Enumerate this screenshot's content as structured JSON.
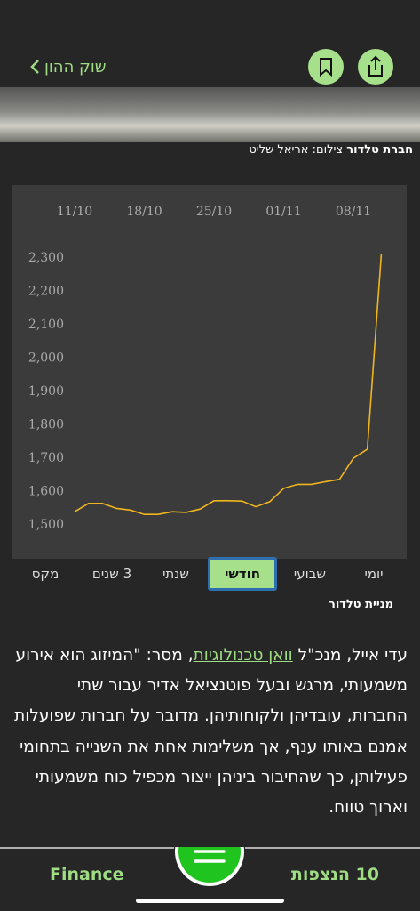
{
  "header": {
    "back_label": "שוק ההון"
  },
  "photo_caption": {
    "credit_bold": "חברת טלדור",
    "credit": "צילום: אריאל שליט"
  },
  "chart_data": {
    "type": "line",
    "categories": [
      "11/10",
      null,
      null,
      null,
      null,
      "18/10",
      null,
      null,
      null,
      null,
      "25/10",
      null,
      null,
      null,
      null,
      "01/11",
      null,
      null,
      null,
      null,
      "08/11",
      null,
      null
    ],
    "values": [
      1540,
      1565,
      1565,
      1550,
      1545,
      1532,
      1532,
      1540,
      1538,
      1548,
      1573,
      1573,
      1572,
      1555,
      1570,
      1610,
      1622,
      1622,
      1630,
      1637,
      1700,
      1727,
      2310
    ],
    "color": "#f0b51e",
    "ylim": [
      1450,
      2350
    ],
    "yticks": [
      {
        "value": 1500,
        "label": "1,500"
      },
      {
        "value": 1600,
        "label": "1,600"
      },
      {
        "value": 1700,
        "label": "1,700"
      },
      {
        "value": 1800,
        "label": "1,800"
      },
      {
        "value": 1900,
        "label": "1,900"
      },
      {
        "value": 2000,
        "label": "2,000"
      },
      {
        "value": 2100,
        "label": "2,100"
      },
      {
        "value": 2200,
        "label": "2,200"
      },
      {
        "value": 2300,
        "label": "2,300"
      }
    ],
    "grid": false
  },
  "tabs": {
    "items": [
      "יומי",
      "שבועי",
      "חודשי",
      "שנתי",
      "3 שנים",
      "מקס"
    ],
    "selected": 2
  },
  "chart_caption": "מניית טלדור",
  "article": {
    "line0": {
      "before": "עדי אייל, מנכ\"ל ",
      "link": "וואן טכנולוגיות",
      "after": ", מסר: \"המיזוג הוא אירוע"
    },
    "lines": [
      "משמעותי, מרגש ובעל פוטנציאל אדיר עבור שתי",
      "החברות, עובדיהן ולקוחותיהן. מדובר על חברות שפועלות",
      "אמנם באותו ענף, אך משלימות אחת את השנייה בתחומי",
      "פעילותן, כך שהחיבור ביניהן ייצור מכפיל כוח משמעותי",
      "וארוך טווח."
    ]
  },
  "bottom_bar": {
    "left": "Finance",
    "right": "10 הנצפות"
  }
}
